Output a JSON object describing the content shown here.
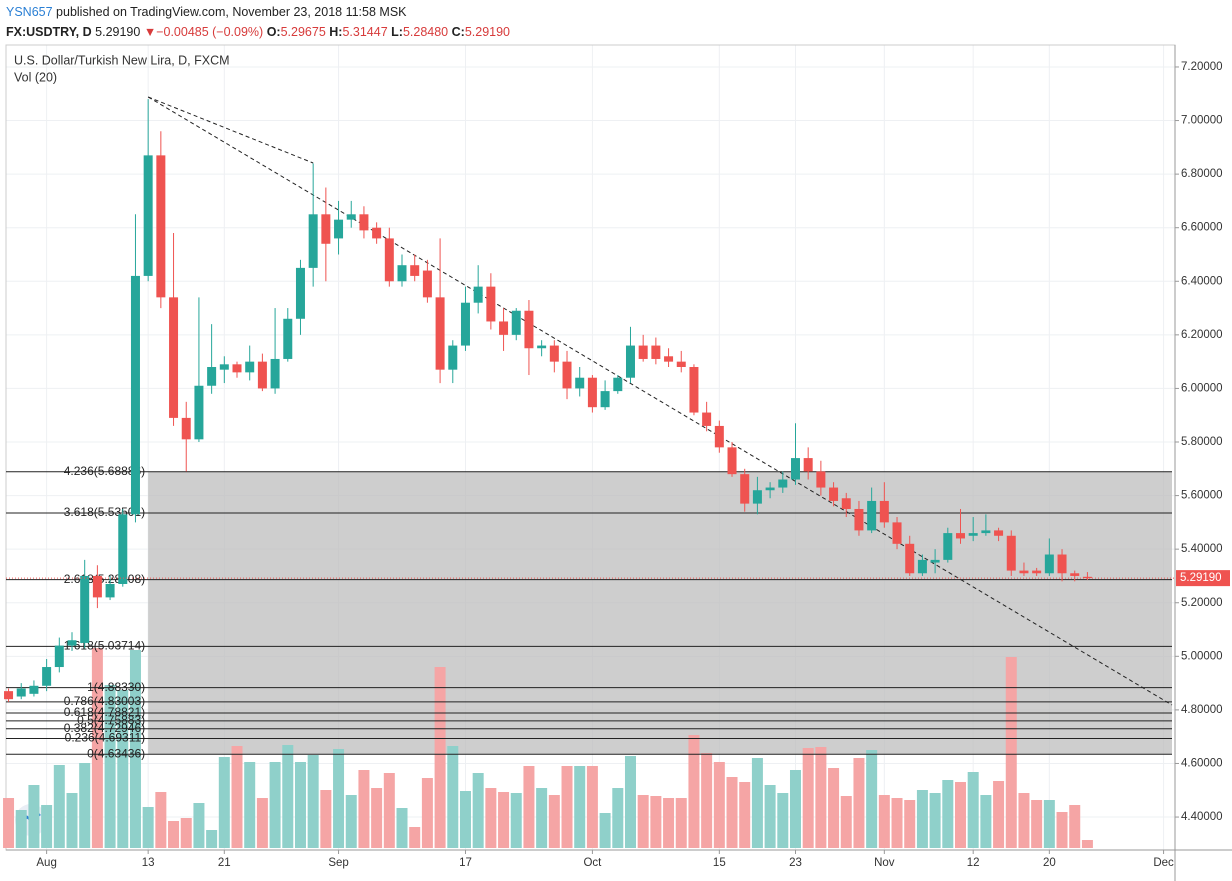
{
  "header": {
    "author": "YSN657",
    "published": "published on TradingView.com, November 23, 2018 11:58 MSK",
    "symbol": "FX:USDTRY, D",
    "price": "5.29190",
    "arrow": "▼",
    "change": "−0.00485 (−0.09%)",
    "open_label": "O:",
    "open": "5.29675",
    "high_label": "H:",
    "high": "5.31447",
    "low_label": "L:",
    "low": "5.28480",
    "close_label": "C:",
    "close": "5.29190"
  },
  "chart_data": {
    "type": "candlestick",
    "title": "U.S. Dollar/Turkish New Lira, D, FXCM",
    "volume_label": "Vol (20)",
    "up_color": "#26a69a",
    "down_color": "#ef5350",
    "vol_up_color": "#8fd0ca",
    "vol_down_color": "#f5a5a5",
    "xlim": [
      -0.2,
      91.9
    ],
    "xticks": [
      {
        "value": 3,
        "label": "Aug"
      },
      {
        "value": 11,
        "label": "13"
      },
      {
        "value": 17,
        "label": "21"
      },
      {
        "value": 26,
        "label": "Sep"
      },
      {
        "value": 36,
        "label": "17"
      },
      {
        "value": 46,
        "label": "Oct"
      },
      {
        "value": 56,
        "label": "15"
      },
      {
        "value": 62,
        "label": "23"
      },
      {
        "value": 69,
        "label": "Nov"
      },
      {
        "value": 76,
        "label": "12"
      },
      {
        "value": 82,
        "label": "20"
      },
      {
        "value": 91,
        "label": "Dec"
      }
    ],
    "ylim": [
      4.277,
      7.282
    ],
    "yticks": [
      {
        "value": 4.4,
        "label": "4.40000"
      },
      {
        "value": 4.6,
        "label": "4.60000"
      },
      {
        "value": 4.8,
        "label": "4.80000"
      },
      {
        "value": 5.0,
        "label": "5.00000"
      },
      {
        "value": 5.2,
        "label": "5.20000"
      },
      {
        "value": 5.4,
        "label": "5.40000"
      },
      {
        "value": 5.6,
        "label": "5.60000"
      },
      {
        "value": 5.8,
        "label": "5.80000"
      },
      {
        "value": 6.0,
        "label": "6.00000"
      },
      {
        "value": 6.2,
        "label": "6.20000"
      },
      {
        "value": 6.4,
        "label": "6.40000"
      },
      {
        "value": 6.6,
        "label": "6.60000"
      },
      {
        "value": 6.8,
        "label": "6.80000"
      },
      {
        "value": 7.0,
        "label": "7.00000"
      },
      {
        "value": 7.2,
        "label": "7.20000"
      }
    ],
    "grid": true,
    "last": {
      "value": 5.2919,
      "label": "5.29190"
    },
    "fib_levels": [
      {
        "value": 5.68886,
        "label": "4.236(5.68886)"
      },
      {
        "value": 5.53501,
        "label": "3.618(5.53501)"
      },
      {
        "value": 5.28608,
        "label": "2.618(5.28608)"
      },
      {
        "value": 5.03714,
        "label": "1.618(5.03714)"
      },
      {
        "value": 4.8833,
        "label": "1(4.88330)"
      },
      {
        "value": 4.83003,
        "label": "0.786(4.83003)"
      },
      {
        "value": 4.78821,
        "label": "0.618(4.78821)"
      },
      {
        "value": 4.75883,
        "label": "0.5(4.75883)"
      },
      {
        "value": 4.72946,
        "label": "0.382(4.72946)"
      },
      {
        "value": 4.69311,
        "label": "0.236(4.69311)"
      },
      {
        "value": 4.63436,
        "label": "0(4.63436)"
      }
    ],
    "open": [
      4.87,
      4.85,
      4.86,
      4.89,
      4.96,
      5.04,
      5.05,
      5.3,
      5.22,
      5.27,
      5.53,
      6.42,
      6.87,
      6.34,
      5.89,
      5.81,
      6.01,
      6.07,
      6.09,
      6.06,
      6.1,
      6.0,
      6.11,
      6.26,
      6.45,
      6.65,
      6.56,
      6.63,
      6.65,
      6.6,
      6.56,
      6.4,
      6.46,
      6.44,
      6.34,
      6.07,
      6.16,
      6.32,
      6.38,
      6.25,
      6.2,
      6.29,
      6.15,
      6.16,
      6.1,
      6.0,
      6.04,
      5.93,
      5.99,
      6.04,
      6.16,
      6.16,
      6.12,
      6.1,
      6.08,
      5.91,
      5.86,
      5.78,
      5.68,
      5.57,
      5.62,
      5.63,
      5.66,
      5.74,
      5.69,
      5.63,
      5.59,
      5.55,
      5.47,
      5.58,
      5.5,
      5.42,
      5.31,
      5.35,
      5.36,
      5.46,
      5.45,
      5.46,
      5.47,
      5.45,
      5.32,
      5.32,
      5.31,
      5.38,
      5.31,
      5.29675
    ],
    "high": [
      4.88,
      4.9,
      4.91,
      4.99,
      5.07,
      5.09,
      5.36,
      5.34,
      5.3,
      5.55,
      6.65,
      7.08,
      6.96,
      6.58,
      5.95,
      6.34,
      6.24,
      6.12,
      6.1,
      6.16,
      6.13,
      6.3,
      6.3,
      6.48,
      6.84,
      6.75,
      6.7,
      6.7,
      6.68,
      6.62,
      6.6,
      6.5,
      6.5,
      6.48,
      6.56,
      6.18,
      6.38,
      6.46,
      6.43,
      6.3,
      6.3,
      6.33,
      6.18,
      6.18,
      6.14,
      6.08,
      6.05,
      6.03,
      6.05,
      6.23,
      6.2,
      6.19,
      6.15,
      6.14,
      6.09,
      5.95,
      5.88,
      5.8,
      5.7,
      5.67,
      5.65,
      5.69,
      5.87,
      5.78,
      5.73,
      5.65,
      5.61,
      5.58,
      5.63,
      5.65,
      5.52,
      5.45,
      5.38,
      5.4,
      5.48,
      5.55,
      5.52,
      5.53,
      5.48,
      5.47,
      5.35,
      5.33,
      5.44,
      5.4,
      5.32,
      5.31447
    ],
    "low": [
      4.83,
      4.84,
      4.85,
      4.87,
      4.94,
      5.02,
      5.03,
      5.18,
      5.21,
      5.26,
      5.5,
      6.4,
      6.3,
      5.86,
      5.69,
      5.8,
      5.98,
      6.02,
      6.04,
      6.03,
      5.99,
      5.98,
      6.1,
      6.2,
      6.38,
      6.4,
      6.5,
      6.6,
      6.56,
      6.54,
      6.38,
      6.38,
      6.4,
      6.32,
      6.02,
      6.02,
      6.14,
      6.28,
      6.22,
      6.14,
      6.18,
      6.05,
      6.12,
      6.06,
      5.96,
      5.97,
      5.91,
      5.92,
      5.98,
      6.02,
      6.1,
      6.09,
      6.08,
      6.06,
      5.9,
      5.84,
      5.76,
      5.67,
      5.54,
      5.53,
      5.59,
      5.61,
      5.64,
      5.66,
      5.6,
      5.56,
      5.52,
      5.45,
      5.46,
      5.48,
      5.4,
      5.3,
      5.3,
      5.31,
      5.35,
      5.42,
      5.43,
      5.45,
      5.43,
      5.3,
      5.3,
      5.3,
      5.3,
      5.28,
      5.28,
      5.2848
    ],
    "close": [
      4.84,
      4.88,
      4.89,
      4.96,
      5.04,
      5.06,
      5.3,
      5.22,
      5.27,
      5.53,
      6.42,
      6.87,
      6.34,
      5.89,
      5.81,
      6.01,
      6.08,
      6.09,
      6.06,
      6.1,
      6.0,
      6.11,
      6.26,
      6.45,
      6.65,
      6.54,
      6.63,
      6.65,
      6.59,
      6.56,
      6.4,
      6.46,
      6.42,
      6.34,
      6.07,
      6.16,
      6.32,
      6.38,
      6.25,
      6.2,
      6.29,
      6.15,
      6.16,
      6.1,
      6.0,
      6.04,
      5.93,
      5.99,
      6.04,
      6.16,
      6.11,
      6.11,
      6.1,
      6.08,
      5.91,
      5.86,
      5.78,
      5.68,
      5.57,
      5.62,
      5.63,
      5.66,
      5.74,
      5.69,
      5.63,
      5.58,
      5.55,
      5.47,
      5.58,
      5.5,
      5.42,
      5.31,
      5.36,
      5.36,
      5.46,
      5.44,
      5.46,
      5.47,
      5.45,
      5.32,
      5.31,
      5.31,
      5.38,
      5.31,
      5.3,
      5.2919
    ],
    "volume": [
      50,
      38,
      63,
      43,
      83,
      55,
      85,
      200,
      163,
      158,
      198,
      41,
      56,
      27,
      30,
      45,
      18,
      91,
      102,
      86,
      50,
      86,
      103,
      86,
      93,
      58,
      99,
      53,
      78,
      60,
      75,
      40,
      21,
      70,
      181,
      102,
      57,
      75,
      60,
      56,
      55,
      82,
      60,
      53,
      82,
      82,
      82,
      35,
      60,
      92,
      53,
      52,
      50,
      50,
      113,
      95,
      86,
      71,
      66,
      90,
      63,
      55,
      78,
      100,
      101,
      80,
      52,
      90,
      98,
      53,
      50,
      48,
      58,
      55,
      68,
      66,
      76,
      53,
      67,
      191,
      55,
      48,
      48,
      36,
      43,
      8
    ]
  }
}
